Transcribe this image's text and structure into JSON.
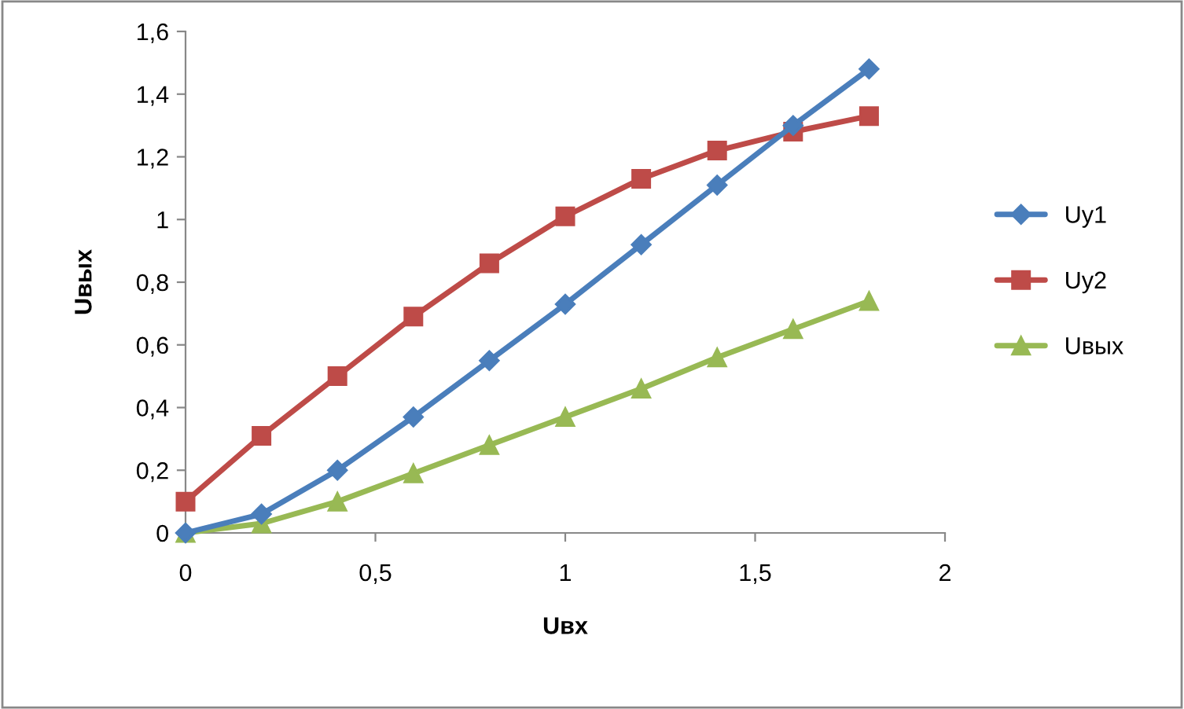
{
  "chart_data": {
    "type": "line",
    "xlabel": "Uвх",
    "ylabel": "Uвых",
    "x": [
      0,
      0.2,
      0.4,
      0.6,
      0.8,
      1.0,
      1.2,
      1.4,
      1.6,
      1.8
    ],
    "series": [
      {
        "name": "Uy1",
        "color": "#4a7ebb",
        "marker": "diamond",
        "values": [
          0.0,
          0.06,
          0.2,
          0.37,
          0.55,
          0.73,
          0.92,
          1.11,
          1.3,
          1.48
        ]
      },
      {
        "name": "Uy2",
        "color": "#be4b48",
        "marker": "square",
        "values": [
          0.1,
          0.31,
          0.5,
          0.69,
          0.86,
          1.01,
          1.13,
          1.22,
          1.28,
          1.33
        ]
      },
      {
        "name": "Uвых",
        "color": "#98b954",
        "marker": "triangle",
        "values": [
          0.0,
          0.03,
          0.1,
          0.19,
          0.28,
          0.37,
          0.46,
          0.56,
          0.65,
          0.74
        ]
      }
    ],
    "xlim": [
      0,
      2
    ],
    "xticks": [
      0,
      {
        "value": 0.5,
        "label": "0,5"
      },
      1,
      {
        "value": 1.5,
        "label": "1,5"
      },
      2
    ],
    "ylim": [
      0,
      1.6
    ],
    "yticks": [
      0,
      {
        "value": 0.2,
        "label": "0,2"
      },
      {
        "value": 0.4,
        "label": "0,4"
      },
      {
        "value": 0.6,
        "label": "0,6"
      },
      {
        "value": 0.8,
        "label": "0,8"
      },
      1,
      {
        "value": 1.2,
        "label": "1,2"
      },
      {
        "value": 1.4,
        "label": "1,4"
      },
      {
        "value": 1.6,
        "label": "1,6"
      }
    ],
    "grid": false,
    "legend": "right",
    "line_style": "solid"
  }
}
